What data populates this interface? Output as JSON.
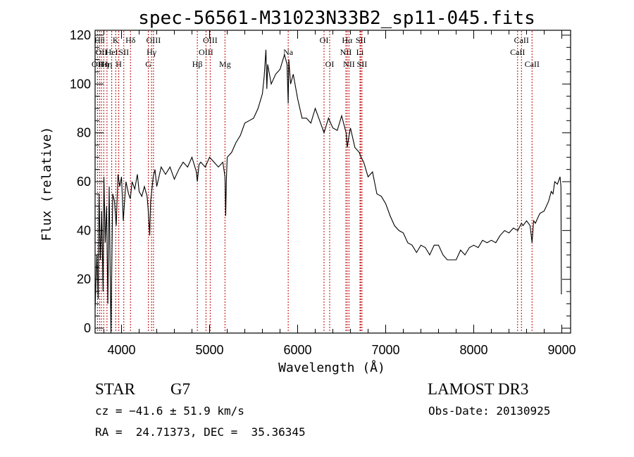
{
  "chart_data": {
    "type": "line",
    "title": "spec-56561-M31023N33B2_sp11-045.fits",
    "xlabel": "Wavelength (Å)",
    "ylabel": "Flux (relative)",
    "xlim": [
      3700,
      9100
    ],
    "ylim": [
      -2,
      122
    ],
    "xticks": [
      4000,
      5000,
      6000,
      7000,
      8000,
      9000
    ],
    "yticks": [
      0,
      20,
      40,
      60,
      80,
      100,
      120
    ],
    "xtick_labels": [
      "4000",
      "5000",
      "6000",
      "7000",
      "8000",
      "9000"
    ],
    "ytick_labels": [
      "0",
      "20",
      "40",
      "60",
      "80",
      "100",
      "120"
    ],
    "x_minor_step": 200,
    "y_minor_step": 5,
    "grid": false,
    "series": [
      {
        "name": "flux",
        "x": [
          3700,
          3720,
          3735,
          3745,
          3760,
          3775,
          3790,
          3800,
          3815,
          3830,
          3845,
          3860,
          3880,
          3900,
          3920,
          3940,
          3960,
          3980,
          4000,
          4020,
          4050,
          4080,
          4100,
          4120,
          4150,
          4180,
          4200,
          4230,
          4260,
          4290,
          4300,
          4310,
          4320,
          4330,
          4340,
          4360,
          4380,
          4400,
          4450,
          4500,
          4550,
          4600,
          4650,
          4700,
          4750,
          4800,
          4850,
          4861,
          4880,
          4900,
          4950,
          5000,
          5050,
          5100,
          5150,
          5175,
          5183,
          5190,
          5200,
          5250,
          5300,
          5350,
          5400,
          5450,
          5500,
          5550,
          5600,
          5620,
          5640,
          5650,
          5660,
          5700,
          5750,
          5800,
          5850,
          5880,
          5893,
          5900,
          5920,
          5950,
          6000,
          6050,
          6100,
          6150,
          6200,
          6250,
          6300,
          6350,
          6400,
          6450,
          6500,
          6550,
          6563,
          6580,
          6600,
          6650,
          6700,
          6720,
          6750,
          6800,
          6850,
          6900,
          6950,
          7000,
          7050,
          7100,
          7150,
          7200,
          7250,
          7300,
          7350,
          7400,
          7450,
          7500,
          7550,
          7600,
          7650,
          7700,
          7750,
          7800,
          7850,
          7900,
          7950,
          8000,
          8050,
          8100,
          8150,
          8200,
          8250,
          8300,
          8350,
          8400,
          8450,
          8500,
          8542,
          8560,
          8600,
          8640,
          8662,
          8680,
          8700,
          8750,
          8800,
          8850,
          8880,
          8900,
          8920,
          8950,
          8980,
          8990,
          8995,
          9000
        ],
        "y": [
          8,
          30,
          12,
          55,
          28,
          48,
          15,
          62,
          35,
          50,
          10,
          58,
          -2,
          55,
          52,
          42,
          63,
          58,
          62,
          44,
          60,
          55,
          53,
          60,
          57,
          63,
          56,
          54,
          58,
          54,
          50,
          44,
          38,
          52,
          55,
          62,
          65,
          58,
          66,
          63,
          66,
          61,
          65,
          68,
          66,
          70,
          64,
          60,
          67,
          68,
          66,
          70,
          68,
          66,
          68,
          62,
          46,
          60,
          70,
          72,
          76,
          79,
          84,
          85,
          86,
          90,
          96,
          103,
          114,
          98,
          108,
          100,
          104,
          106,
          112,
          108,
          92,
          110,
          100,
          104,
          94,
          86,
          86,
          84,
          90,
          85,
          80,
          86,
          82,
          81,
          87,
          80,
          74,
          78,
          82,
          74,
          72,
          70,
          68,
          62,
          64,
          55,
          54,
          51,
          46,
          42,
          40,
          39,
          35,
          34,
          31,
          34,
          33,
          30,
          34,
          34,
          30,
          28,
          28,
          28,
          32,
          30,
          33,
          34,
          33,
          36,
          35,
          36,
          35,
          38,
          40,
          39,
          41,
          40,
          43,
          42,
          44,
          42,
          35,
          44,
          43,
          47,
          48,
          52,
          56,
          55,
          60,
          59,
          62,
          58,
          14,
          14
        ]
      }
    ],
    "lines": [
      {
        "wave": 3727,
        "label": "OII",
        "row": 3
      },
      {
        "wave": 3750,
        "label": "Hθ",
        "row": 1
      },
      {
        "wave": 3771,
        "label": "OII",
        "row": 2
      },
      {
        "wave": 3798,
        "label": "Hη",
        "row": 3
      },
      {
        "wave": 3835,
        "label": "Hη",
        "row": 3
      },
      {
        "wave": 3889,
        "label": "HeI",
        "row": 2
      },
      {
        "wave": 3934,
        "label": "K",
        "row": 1
      },
      {
        "wave": 3969,
        "label": "H",
        "row": 3
      },
      {
        "wave": 4026,
        "label": "SII",
        "row": 2
      },
      {
        "wave": 4102,
        "label": "Hδ",
        "row": 1
      },
      {
        "wave": 4305,
        "label": "G",
        "row": 3
      },
      {
        "wave": 4341,
        "label": "Hγ",
        "row": 2
      },
      {
        "wave": 4363,
        "label": "OIII",
        "row": 1
      },
      {
        "wave": 4861,
        "label": "Hβ",
        "row": 3
      },
      {
        "wave": 4959,
        "label": "OIII",
        "row": 2
      },
      {
        "wave": 5007,
        "label": "OIII",
        "row": 1
      },
      {
        "wave": 5175,
        "label": "Mg",
        "row": 3
      },
      {
        "wave": 5893,
        "label": "Na",
        "row": 2
      },
      {
        "wave": 6300,
        "label": "OI",
        "row": 1
      },
      {
        "wave": 6364,
        "label": "OI",
        "row": 3
      },
      {
        "wave": 6548,
        "label": "NII",
        "row": 2
      },
      {
        "wave": 6563,
        "label": "Hα",
        "row": 1
      },
      {
        "wave": 6583,
        "label": "NII",
        "row": 3
      },
      {
        "wave": 6708,
        "label": "Li",
        "row": 2
      },
      {
        "wave": 6717,
        "label": "SII",
        "row": 1
      },
      {
        "wave": 6731,
        "label": "SII",
        "row": 3
      },
      {
        "wave": 8498,
        "label": "CaII",
        "row": 2
      },
      {
        "wave": 8542,
        "label": "CaII",
        "row": 1
      },
      {
        "wave": 8662,
        "label": "CaII",
        "row": 3
      }
    ],
    "line_color": "#c00000"
  },
  "info": {
    "class": "STAR",
    "subclass": "G7",
    "survey": "LAMOST DR3",
    "cz": "cz = −41.6 ± 51.9 km/s",
    "obs_date": "Obs-Date: 20130925",
    "coords": "RA =  24.71373, DEC =  35.36345"
  }
}
